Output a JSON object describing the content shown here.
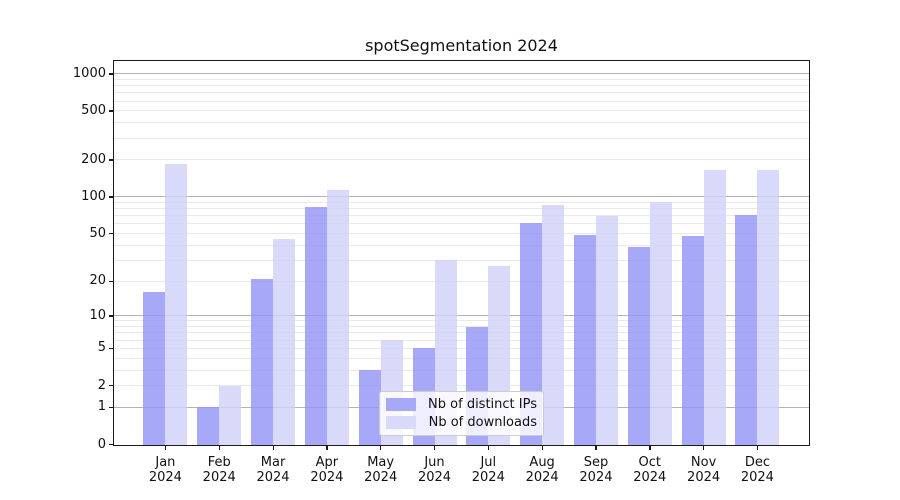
{
  "chart_data": {
    "type": "bar",
    "title": "spotSegmentation 2024",
    "categories": [
      "Jan",
      "Feb",
      "Mar",
      "Apr",
      "May",
      "Jun",
      "Jul",
      "Aug",
      "Sep",
      "Oct",
      "Nov",
      "Dec"
    ],
    "x_tick_second_line": "2024",
    "series": [
      {
        "name": "Nb of distinct IPs",
        "color": "#a8a8f8",
        "fill": "rgba(146,146,246,0.8)",
        "values": [
          16,
          1,
          21,
          83,
          3,
          5,
          8,
          61,
          49,
          39,
          48,
          71
        ]
      },
      {
        "name": "Nb of downloads",
        "color": "#d9d9f9",
        "fill": "rgba(208,208,248,0.8)",
        "values": [
          185,
          2,
          45,
          114,
          6,
          30,
          27,
          85,
          70,
          91,
          165,
          165
        ]
      }
    ],
    "xlabel": "",
    "ylabel": "",
    "yscale": "symlog (position = ln(1+value))",
    "ylim": [
      0,
      1280
    ],
    "y_tick_labels": [
      "1000",
      "500",
      "200",
      "100",
      "50",
      "20",
      "10",
      "5",
      "2",
      "1",
      "0"
    ],
    "y_tick_values": [
      1000,
      500,
      200,
      100,
      50,
      20,
      10,
      5,
      2,
      1,
      0
    ],
    "major_gridlines": [
      1,
      10,
      100,
      1000
    ],
    "minor_gridlines": [
      2,
      3,
      4,
      5,
      6,
      7,
      8,
      9,
      20,
      30,
      40,
      50,
      60,
      70,
      80,
      90,
      200,
      300,
      400,
      500,
      600,
      700,
      800,
      900
    ],
    "grid_on": true,
    "grid_colors": {
      "major": "#b3b3b3",
      "minor": "#e9e9e9"
    },
    "legend": {
      "position": "lower center"
    }
  }
}
